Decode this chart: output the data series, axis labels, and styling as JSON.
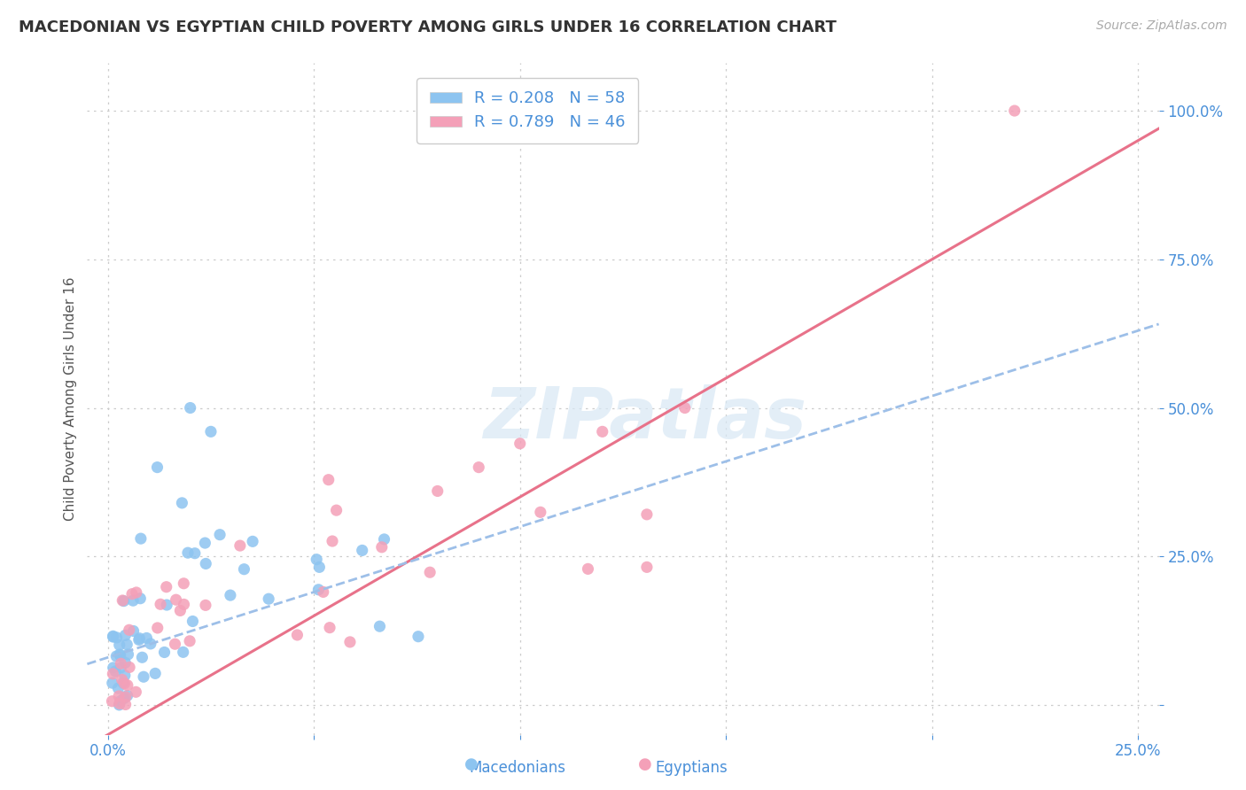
{
  "title": "MACEDONIAN VS EGYPTIAN CHILD POVERTY AMONG GIRLS UNDER 16 CORRELATION CHART",
  "source": "Source: ZipAtlas.com",
  "ylabel": "Child Poverty Among Girls Under 16",
  "watermark": "ZIPatlas",
  "macedonian_R": 0.208,
  "macedonian_N": 58,
  "egyptian_R": 0.789,
  "egyptian_N": 46,
  "macedonian_color": "#8dc4f0",
  "egyptian_color": "#f4a0b8",
  "macedonian_line_color": "#5b9bd5",
  "egyptian_line_color": "#e8728a",
  "dashed_line_color": "#9dbfe8",
  "background_color": "#ffffff",
  "title_fontsize": 13,
  "axis_label_fontsize": 11,
  "tick_fontsize": 12,
  "legend_fontsize": 13,
  "mac_line_slope": 2.2,
  "mac_line_intercept": 0.08,
  "egy_line_slope": 4.0,
  "egy_line_intercept": -0.05
}
